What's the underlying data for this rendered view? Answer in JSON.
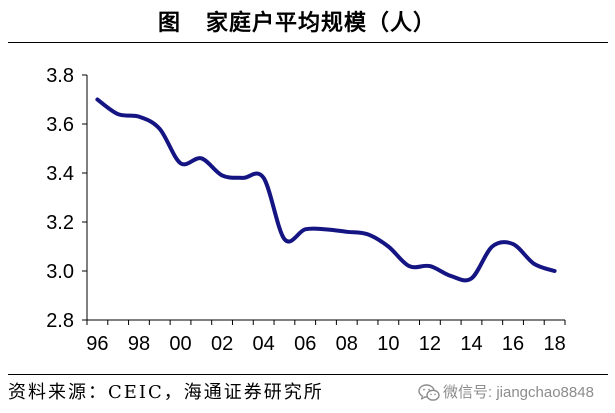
{
  "figure": {
    "label": "图",
    "source": "资料来源：CEIC，海通证券研究所"
  },
  "watermark": {
    "icon": "wechat-icon",
    "text": "微信号: jiangchao8848",
    "color": "#8c8c8c"
  },
  "chart_data": {
    "type": "line",
    "title": "家庭户平均规模（人）",
    "x": [
      1996,
      1997,
      1998,
      1999,
      2000,
      2001,
      2002,
      2003,
      2004,
      2005,
      2006,
      2007,
      2008,
      2009,
      2010,
      2011,
      2012,
      2013,
      2014,
      2015,
      2016,
      2017,
      2018
    ],
    "x_tick_labels": [
      "96",
      "98",
      "00",
      "02",
      "04",
      "06",
      "08",
      "10",
      "12",
      "14",
      "16",
      "18"
    ],
    "y_tick_labels": [
      "2.8",
      "3.0",
      "3.2",
      "3.4",
      "3.6",
      "3.8"
    ],
    "ylim": [
      2.8,
      3.8
    ],
    "grid": false,
    "legend": false,
    "smooth": true,
    "series": [
      {
        "color": "#141482",
        "values": [
          3.7,
          3.64,
          3.63,
          3.58,
          3.44,
          3.46,
          3.39,
          3.38,
          3.38,
          3.13,
          3.17,
          3.17,
          3.16,
          3.15,
          3.1,
          3.02,
          3.02,
          2.98,
          2.97,
          3.1,
          3.11,
          3.03,
          3.0
        ]
      }
    ]
  }
}
